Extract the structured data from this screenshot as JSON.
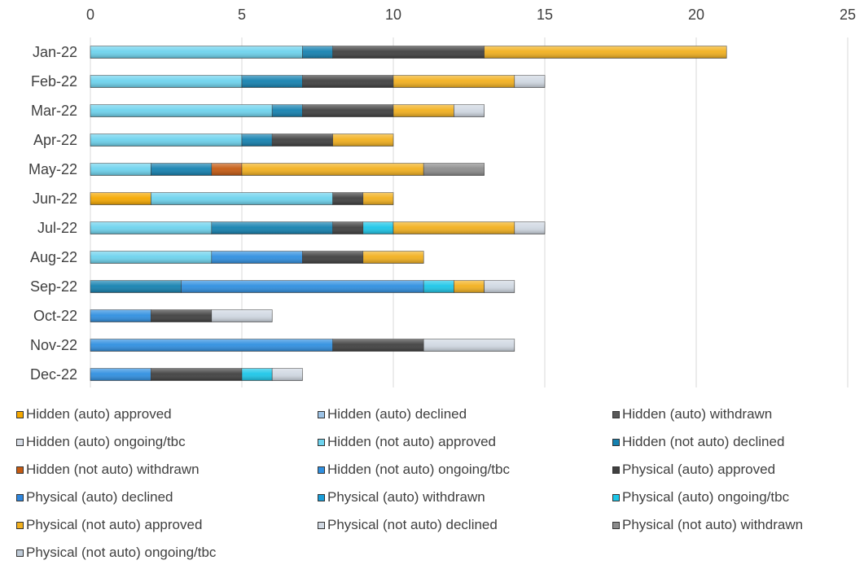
{
  "chart_data": {
    "type": "bar",
    "orientation": "horizontal",
    "stacked": true,
    "xlim": [
      0,
      25
    ],
    "x_ticks": [
      "0",
      "5",
      "10",
      "15",
      "20",
      "25"
    ],
    "x_axis_position": "top",
    "grid": true,
    "legend_position": "bottom",
    "categories": [
      "Jan-22",
      "Feb-22",
      "Mar-22",
      "Apr-22",
      "May-22",
      "Jun-22",
      "Jul-22",
      "Aug-22",
      "Sep-22",
      "Oct-22",
      "Nov-22",
      "Dec-22"
    ],
    "series": [
      {
        "name": "Hidden (auto) approved",
        "color": "#F5A800",
        "values": [
          0,
          0,
          0,
          0,
          0,
          2,
          0,
          0,
          0,
          0,
          0,
          0
        ]
      },
      {
        "name": "Hidden (auto) declined",
        "color": "#9DC3E6",
        "values": [
          0,
          0,
          0,
          0,
          0,
          0,
          0,
          0,
          0,
          0,
          0,
          0
        ]
      },
      {
        "name": "Hidden (auto) withdrawn",
        "color": "#595959",
        "values": [
          0,
          0,
          0,
          0,
          0,
          0,
          0,
          0,
          0,
          0,
          0,
          0
        ]
      },
      {
        "name": "Hidden (auto) ongoing/tbc",
        "color": "#D6DCE5",
        "values": [
          0,
          0,
          0,
          0,
          0,
          0,
          0,
          0,
          0,
          0,
          0,
          0
        ]
      },
      {
        "name": "Hidden (not auto) approved",
        "color": "#6DD3EE",
        "values": [
          7,
          5,
          6,
          5,
          2,
          6,
          4,
          4,
          0,
          0,
          0,
          0
        ]
      },
      {
        "name": "Hidden (not auto) declined",
        "color": "#1481B0",
        "values": [
          1,
          2,
          1,
          1,
          2,
          0,
          4,
          0,
          3,
          0,
          0,
          0
        ]
      },
      {
        "name": "Hidden (not auto) withdrawn",
        "color": "#C55A11",
        "values": [
          0,
          0,
          0,
          0,
          1,
          0,
          0,
          0,
          0,
          0,
          0,
          0
        ]
      },
      {
        "name": "Hidden (not auto) ongoing/tbc",
        "color": "#2F8FE0",
        "values": [
          0,
          0,
          0,
          0,
          0,
          0,
          0,
          3,
          8,
          2,
          8,
          2
        ]
      },
      {
        "name": "Physical (auto) approved",
        "color": "#404040",
        "values": [
          5,
          3,
          3,
          2,
          0,
          1,
          1,
          2,
          0,
          2,
          3,
          3
        ]
      },
      {
        "name": "Physical (auto) declined",
        "color": "#2E86DE",
        "values": [
          0,
          0,
          0,
          0,
          0,
          0,
          0,
          0,
          0,
          0,
          0,
          0
        ]
      },
      {
        "name": "Physical (auto) withdrawn",
        "color": "#1A9ED9",
        "values": [
          0,
          0,
          0,
          0,
          0,
          0,
          0,
          0,
          0,
          0,
          0,
          0
        ]
      },
      {
        "name": "Physical (auto) ongoing/tbc",
        "color": "#1CC6E8",
        "values": [
          0,
          0,
          0,
          0,
          0,
          0,
          1,
          0,
          1,
          0,
          0,
          1
        ]
      },
      {
        "name": "Physical (not auto) approved",
        "color": "#F2B01E",
        "values": [
          8,
          4,
          2,
          2,
          6,
          1,
          4,
          2,
          1,
          0,
          0,
          0
        ]
      },
      {
        "name": "Physical (not auto) declined",
        "color": "#D0D8E2",
        "values": [
          0,
          1,
          1,
          0,
          0,
          0,
          1,
          0,
          1,
          2,
          3,
          1
        ]
      },
      {
        "name": "Physical (not auto) withdrawn",
        "color": "#8C8C8C",
        "values": [
          0,
          0,
          0,
          0,
          2,
          0,
          0,
          0,
          0,
          0,
          0,
          0
        ]
      },
      {
        "name": "Physical (not auto) ongoing/tbc",
        "color": "#BFCBD8",
        "values": [
          0,
          0,
          0,
          0,
          0,
          0,
          0,
          0,
          0,
          0,
          0,
          0
        ]
      }
    ]
  }
}
